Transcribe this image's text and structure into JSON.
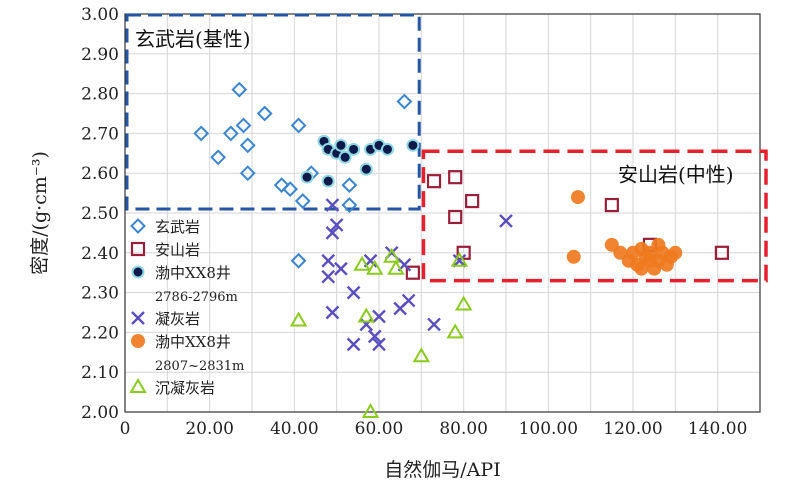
{
  "chart_data": {
    "type": "scatter",
    "xlabel": "自然伽马/API",
    "ylabel": "密度/(g·cm⁻³)",
    "xlim": [
      0,
      150
    ],
    "ylim": [
      2.0,
      3.0
    ],
    "x_ticks": [
      "0",
      "20.00",
      "40.00",
      "60.00",
      "80.00",
      "100.00",
      "120.00",
      "140.00"
    ],
    "y_ticks": [
      "2.00",
      "2.10",
      "2.20",
      "2.30",
      "2.40",
      "2.50",
      "2.60",
      "2.70",
      "2.80",
      "2.90",
      "3.00"
    ],
    "grid": true,
    "legend_position": "left",
    "regions": [
      {
        "label": "玄武岩(基性)",
        "x0": 0,
        "x1": 69.5,
        "y0": 2.51,
        "y1": 3.0,
        "color": "#2456a4"
      },
      {
        "label": "安山岩(中性)",
        "x0": 70.5,
        "x1": 150,
        "y0": 2.33,
        "y1": 2.655,
        "color": "#e6202e"
      }
    ],
    "series": [
      {
        "name": "玄武岩",
        "marker": "diamond",
        "color": "#3a86d0",
        "points": [
          [
            18,
            2.7
          ],
          [
            22,
            2.64
          ],
          [
            25,
            2.7
          ],
          [
            27,
            2.81
          ],
          [
            28,
            2.72
          ],
          [
            29,
            2.67
          ],
          [
            29,
            2.6
          ],
          [
            33,
            2.75
          ],
          [
            37,
            2.57
          ],
          [
            39,
            2.56
          ],
          [
            41,
            2.72
          ],
          [
            42,
            2.53
          ],
          [
            44,
            2.6
          ],
          [
            53,
            2.57
          ],
          [
            53,
            2.52
          ],
          [
            66,
            2.78
          ],
          [
            41,
            2.38
          ]
        ]
      },
      {
        "name": "安山岩",
        "marker": "square",
        "color": "#9b1f3a",
        "points": [
          [
            73,
            2.58
          ],
          [
            78,
            2.59
          ],
          [
            78,
            2.49
          ],
          [
            82,
            2.53
          ],
          [
            80,
            2.4
          ],
          [
            68,
            2.35
          ],
          [
            115,
            2.52
          ],
          [
            141,
            2.4
          ],
          [
            124,
            2.42
          ]
        ]
      },
      {
        "name": "渤中XX8井",
        "name2": "2786-2796m",
        "marker": "dot-ring",
        "color": "#0e1a4a",
        "ring": "#8fd8e4",
        "points": [
          [
            43,
            2.59
          ],
          [
            47,
            2.68
          ],
          [
            48,
            2.66
          ],
          [
            48,
            2.58
          ],
          [
            50,
            2.65
          ],
          [
            51,
            2.67
          ],
          [
            52,
            2.64
          ],
          [
            54,
            2.66
          ],
          [
            57,
            2.61
          ],
          [
            58,
            2.66
          ],
          [
            60,
            2.67
          ],
          [
            62,
            2.66
          ],
          [
            68,
            2.67
          ]
        ]
      },
      {
        "name": "凝灰岩",
        "marker": "x",
        "color": "#5a4fc0",
        "points": [
          [
            49,
            2.52
          ],
          [
            50,
            2.47
          ],
          [
            49,
            2.45
          ],
          [
            48,
            2.38
          ],
          [
            48,
            2.34
          ],
          [
            51,
            2.36
          ],
          [
            49,
            2.25
          ],
          [
            54,
            2.3
          ],
          [
            54,
            2.17
          ],
          [
            57,
            2.22
          ],
          [
            58,
            2.38
          ],
          [
            59,
            2.19
          ],
          [
            60,
            2.17
          ],
          [
            60,
            2.24
          ],
          [
            63,
            2.4
          ],
          [
            65,
            2.26
          ],
          [
            66,
            2.37
          ],
          [
            67,
            2.28
          ],
          [
            73,
            2.22
          ],
          [
            90,
            2.48
          ],
          [
            79,
            2.38
          ]
        ]
      },
      {
        "name": "渤中XX8井",
        "name2": "2807~2831m",
        "marker": "orange-dot",
        "color": "#f07a1e",
        "points": [
          [
            106,
            2.39
          ],
          [
            107,
            2.54
          ],
          [
            115,
            2.42
          ],
          [
            117,
            2.4
          ],
          [
            119,
            2.38
          ],
          [
            120,
            2.4
          ],
          [
            121,
            2.37
          ],
          [
            122,
            2.41
          ],
          [
            123,
            2.39
          ],
          [
            124,
            2.4
          ],
          [
            125,
            2.36
          ],
          [
            126,
            2.38
          ],
          [
            127,
            2.4
          ],
          [
            128,
            2.37
          ],
          [
            129,
            2.39
          ],
          [
            130,
            2.4
          ],
          [
            122,
            2.36
          ],
          [
            124,
            2.38
          ],
          [
            126,
            2.42
          ]
        ]
      },
      {
        "name": "沉凝灰岩",
        "marker": "triangle",
        "color": "#8acb1e",
        "points": [
          [
            41,
            2.23
          ],
          [
            56,
            2.37
          ],
          [
            57,
            2.24
          ],
          [
            59,
            2.36
          ],
          [
            63,
            2.39
          ],
          [
            64,
            2.36
          ],
          [
            70,
            2.14
          ],
          [
            78,
            2.2
          ],
          [
            79,
            2.38
          ],
          [
            80,
            2.27
          ],
          [
            58,
            2.0
          ]
        ]
      }
    ]
  }
}
